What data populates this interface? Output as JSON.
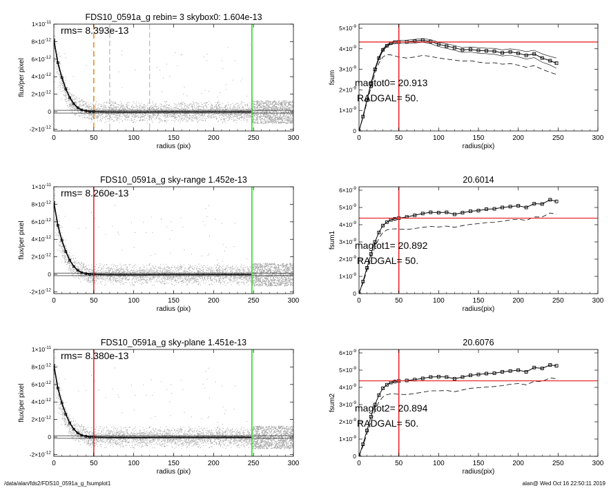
{
  "footer": {
    "left": "/data/alan/fds2/FDS10_0591a_g_fsumplot1",
    "right": "alan@  Wed Oct 16 22:50:11 2019"
  },
  "colors": {
    "red": "#e8282a",
    "green": "#22e01a",
    "orange": "#f08a1e",
    "scatter": "#a8a8a8",
    "profile": "#000000"
  },
  "chart_data": [
    {
      "type": "scatter",
      "panel": "left-1",
      "title": "FDS10_0591a_g rebin= 3    skybox0:  1.604e-13",
      "annotation": "rms= 8.393e-13",
      "xlabel": "radius (pix)",
      "ylabel": "flux/per pixel",
      "xlim": [
        0,
        300
      ],
      "ylim": [
        -2.2e-12,
        1e-11
      ],
      "xticks": [
        0,
        50,
        100,
        150,
        200,
        250,
        300
      ],
      "yticks": [
        {
          "v": 1e-11,
          "m": "1×10",
          "e": "-11"
        },
        {
          "v": 8e-12,
          "m": "8×10",
          "e": "-12"
        },
        {
          "v": 6e-12,
          "m": "6×10",
          "e": "-12"
        },
        {
          "v": 4e-12,
          "m": "4×10",
          "e": "-12"
        },
        {
          "v": 2e-12,
          "m": "2×10",
          "e": "-12"
        },
        {
          "v": 0,
          "m": "0",
          "e": ""
        },
        {
          "v": -2e-12,
          "m": "-2×10",
          "e": "-12"
        }
      ],
      "vlines": [
        {
          "x": 50,
          "color": "#f08a1e",
          "dash": true
        },
        {
          "x": 70,
          "color": "#888888",
          "dash": true,
          "thin": true
        },
        {
          "x": 120,
          "color": "#888888",
          "dash": true,
          "thin": true
        },
        {
          "x": 248,
          "color": "#22e01a"
        }
      ],
      "hlines": [
        {
          "y": 1.6e-13
        },
        {
          "y": -1.6e-13
        }
      ],
      "profile_x": [
        0,
        5,
        10,
        15,
        20,
        25,
        30,
        35,
        40,
        45,
        50,
        60,
        80,
        100,
        150,
        200,
        248
      ],
      "profile_y": [
        8.2e-12,
        5.6e-12,
        3.9e-12,
        2.6e-12,
        1.6e-12,
        9e-13,
        4.5e-13,
        2e-13,
        8e-14,
        2e-14,
        0.0,
        -2e-14,
        -3e-14,
        -3e-14,
        -2e-14,
        -2e-14,
        -2e-14
      ]
    },
    {
      "type": "line",
      "panel": "right-1",
      "title": "",
      "annotations": [
        "magtot0=  20.913",
        "RADGAL=     50."
      ],
      "xlabel": "radius(pix)",
      "ylabel": "fsum",
      "xlim": [
        0,
        300
      ],
      "ylim": [
        0,
        5.2e-09
      ],
      "xticks": [
        0,
        50,
        100,
        150,
        200,
        250,
        300
      ],
      "yticks": [
        {
          "v": 0,
          "m": "0",
          "e": ""
        },
        {
          "v": 1e-09,
          "m": "1×10",
          "e": "-9"
        },
        {
          "v": 2e-09,
          "m": "2×10",
          "e": "-9"
        },
        {
          "v": 3e-09,
          "m": "3×10",
          "e": "-9"
        },
        {
          "v": 4e-09,
          "m": "4×10",
          "e": "-9"
        },
        {
          "v": 5e-09,
          "m": "5×10",
          "e": "-9"
        }
      ],
      "vline": 50,
      "hline": 4.33e-09,
      "x": [
        0,
        5,
        10,
        15,
        20,
        25,
        30,
        35,
        40,
        45,
        50,
        60,
        70,
        80,
        90,
        100,
        110,
        120,
        130,
        140,
        150,
        160,
        170,
        180,
        190,
        200,
        210,
        220,
        230,
        240,
        248
      ],
      "series": [
        {
          "style": "squares",
          "values": [
            0,
            7e-10,
            1.5e-09,
            2.3e-09,
            3e-09,
            3.55e-09,
            3.95e-09,
            4.15e-09,
            4.27e-09,
            4.32e-09,
            4.33e-09,
            4.34e-09,
            4.38e-09,
            4.42e-09,
            4.35e-09,
            4.22e-09,
            4.13e-09,
            4.05e-09,
            3.95e-09,
            3.97e-09,
            3.92e-09,
            3.9e-09,
            3.88e-09,
            3.8e-09,
            3.85e-09,
            3.78e-09,
            3.68e-09,
            3.75e-09,
            3.55e-09,
            3.42e-09,
            3.3e-09
          ]
        },
        {
          "style": "thin",
          "values": [
            0,
            7.2e-10,
            1.52e-09,
            2.33e-09,
            3.05e-09,
            3.6e-09,
            4e-09,
            4.2e-09,
            4.32e-09,
            4.38e-09,
            4.4e-09,
            4.42e-09,
            4.46e-09,
            4.5e-09,
            4.44e-09,
            4.32e-09,
            4.24e-09,
            4.16e-09,
            4.06e-09,
            4.09e-09,
            4.05e-09,
            4.03e-09,
            4.02e-09,
            3.95e-09,
            4e-09,
            3.95e-09,
            3.86e-09,
            3.93e-09,
            3.75e-09,
            3.63e-09,
            3.55e-09
          ]
        },
        {
          "style": "thin",
          "values": [
            0,
            6.8e-10,
            1.48e-09,
            2.27e-09,
            2.95e-09,
            3.5e-09,
            3.9e-09,
            4.1e-09,
            4.22e-09,
            4.26e-09,
            4.26e-09,
            4.26e-09,
            4.28e-09,
            4.32e-09,
            4.25e-09,
            4.11e-09,
            4.02e-09,
            3.93e-09,
            3.82e-09,
            3.84e-09,
            3.78e-09,
            3.76e-09,
            3.73e-09,
            3.65e-09,
            3.69e-09,
            3.61e-09,
            3.5e-09,
            3.57e-09,
            3.35e-09,
            3.21e-09,
            3.05e-09
          ]
        },
        {
          "style": "dashed",
          "values": [
            0,
            6.5e-10,
            1.4e-09,
            2.1e-09,
            2.8e-09,
            3.3e-09,
            3.6e-09,
            3.72e-09,
            3.7e-09,
            3.65e-09,
            3.6e-09,
            3.55e-09,
            3.6e-09,
            3.68e-09,
            3.63e-09,
            3.55e-09,
            3.5e-09,
            3.45e-09,
            3.4e-09,
            3.42e-09,
            3.35e-09,
            3.3e-09,
            3.32e-09,
            3.25e-09,
            3.28e-09,
            3.2e-09,
            3.1e-09,
            3.18e-09,
            3e-09,
            2.85e-09,
            2.75e-09
          ]
        }
      ]
    },
    {
      "type": "scatter",
      "panel": "left-2",
      "title": "FDS10_0591a_g sky-range  1.452e-13",
      "annotation": "rms= 8.260e-13",
      "xlabel": "radius (pix)",
      "ylabel": "flux/per pixel",
      "xlim": [
        0,
        300
      ],
      "ylim": [
        -2.2e-12,
        1e-11
      ],
      "xticks": [
        0,
        50,
        100,
        150,
        200,
        250,
        300
      ],
      "yticks": [
        {
          "v": 1e-11,
          "m": "1×10",
          "e": "-11"
        },
        {
          "v": 8e-12,
          "m": "8×10",
          "e": "-12"
        },
        {
          "v": 6e-12,
          "m": "6×10",
          "e": "-12"
        },
        {
          "v": 4e-12,
          "m": "4×10",
          "e": "-12"
        },
        {
          "v": 2e-12,
          "m": "2×10",
          "e": "-12"
        },
        {
          "v": 0,
          "m": "0",
          "e": ""
        },
        {
          "v": -2e-12,
          "m": "-2×10",
          "e": "-12"
        }
      ],
      "vlines": [
        {
          "x": 50,
          "color": "#e8282a"
        },
        {
          "x": 248,
          "color": "#22e01a"
        }
      ],
      "hlines": [
        {
          "y": 1.45e-13
        },
        {
          "y": -1.45e-13
        }
      ],
      "profile_x": [
        0,
        5,
        10,
        15,
        20,
        25,
        30,
        35,
        40,
        45,
        50,
        60,
        80,
        100,
        150,
        200,
        248
      ],
      "profile_y": [
        8.2e-12,
        5.6e-12,
        3.9e-12,
        2.6e-12,
        1.6e-12,
        9e-13,
        4.5e-13,
        2e-13,
        8e-14,
        2e-14,
        0.0,
        -2e-14,
        -3e-14,
        -3e-14,
        -2e-14,
        -2e-14,
        -2e-14
      ]
    },
    {
      "type": "line",
      "panel": "right-2",
      "title": "20.6014",
      "annotations": [
        "magtot1=  20.892",
        "RADGAL=     50."
      ],
      "xlabel": "radius(pix)",
      "ylabel": "fsum1",
      "xlim": [
        0,
        300
      ],
      "ylim": [
        0,
        6.2e-09
      ],
      "xticks": [
        0,
        50,
        100,
        150,
        200,
        250,
        300
      ],
      "yticks": [
        {
          "v": 0,
          "m": "0",
          "e": ""
        },
        {
          "v": 1e-09,
          "m": "1×10",
          "e": "-9"
        },
        {
          "v": 2e-09,
          "m": "2×10",
          "e": "-9"
        },
        {
          "v": 3e-09,
          "m": "3×10",
          "e": "-9"
        },
        {
          "v": 4e-09,
          "m": "4×10",
          "e": "-9"
        },
        {
          "v": 5e-09,
          "m": "5×10",
          "e": "-9"
        },
        {
          "v": 6e-09,
          "m": "6×10",
          "e": "-9"
        }
      ],
      "vline": 50,
      "hline": 4.38e-09,
      "x": [
        0,
        5,
        10,
        15,
        20,
        25,
        30,
        35,
        40,
        45,
        50,
        60,
        70,
        80,
        90,
        100,
        110,
        120,
        130,
        140,
        150,
        160,
        170,
        180,
        190,
        200,
        210,
        220,
        230,
        240,
        248
      ],
      "series": [
        {
          "style": "squares",
          "values": [
            0,
            7e-10,
            1.5e-09,
            2.3e-09,
            3e-09,
            3.55e-09,
            3.95e-09,
            4.15e-09,
            4.28e-09,
            4.34e-09,
            4.38e-09,
            4.45e-09,
            4.55e-09,
            4.65e-09,
            4.72e-09,
            4.7e-09,
            4.72e-09,
            4.6e-09,
            4.7e-09,
            4.78e-09,
            4.82e-09,
            4.9e-09,
            4.92e-09,
            5e-09,
            5.05e-09,
            5.1e-09,
            5e-09,
            5.22e-09,
            5.2e-09,
            5.45e-09,
            5.35e-09
          ]
        },
        {
          "style": "dashed",
          "values": [
            0,
            6.2e-10,
            1.35e-09,
            2.05e-09,
            2.7e-09,
            3.2e-09,
            3.55e-09,
            3.7e-09,
            3.75e-09,
            3.76e-09,
            3.75e-09,
            3.72e-09,
            3.78e-09,
            3.85e-09,
            3.9e-09,
            3.87e-09,
            3.92e-09,
            3.85e-09,
            3.95e-09,
            4.02e-09,
            4.06e-09,
            4.12e-09,
            4.14e-09,
            4.2e-09,
            4.28e-09,
            4.32e-09,
            4.25e-09,
            4.45e-09,
            4.45e-09,
            4.68e-09,
            4.6e-09
          ]
        }
      ]
    },
    {
      "type": "scatter",
      "panel": "left-3",
      "title": "FDS10_0591a_g sky-plane  1.451e-13",
      "annotation": "rms= 8.380e-13",
      "xlabel": "radius (pix)",
      "ylabel": "flux/per pixel",
      "xlim": [
        0,
        300
      ],
      "ylim": [
        -2.2e-12,
        1e-11
      ],
      "xticks": [
        0,
        50,
        100,
        150,
        200,
        250,
        300
      ],
      "yticks": [
        {
          "v": 1e-11,
          "m": "1×10",
          "e": "-11"
        },
        {
          "v": 8e-12,
          "m": "8×10",
          "e": "-12"
        },
        {
          "v": 6e-12,
          "m": "6×10",
          "e": "-12"
        },
        {
          "v": 4e-12,
          "m": "4×10",
          "e": "-12"
        },
        {
          "v": 2e-12,
          "m": "2×10",
          "e": "-12"
        },
        {
          "v": 0,
          "m": "0",
          "e": ""
        },
        {
          "v": -2e-12,
          "m": "-2×10",
          "e": "-12"
        }
      ],
      "vlines": [
        {
          "x": 50,
          "color": "#e8282a"
        },
        {
          "x": 248,
          "color": "#22e01a"
        }
      ],
      "hlines": [
        {
          "y": 1.45e-13
        },
        {
          "y": -1.45e-13
        }
      ],
      "profile_x": [
        0,
        5,
        10,
        15,
        20,
        25,
        30,
        35,
        40,
        45,
        50,
        60,
        80,
        100,
        150,
        200,
        248
      ],
      "profile_y": [
        8.2e-12,
        5.6e-12,
        3.9e-12,
        2.6e-12,
        1.6e-12,
        9e-13,
        4.5e-13,
        2e-13,
        8e-14,
        2e-14,
        0.0,
        -2e-14,
        -3e-14,
        -3e-14,
        -2e-14,
        -2e-14,
        -2e-14
      ]
    },
    {
      "type": "line",
      "panel": "right-3",
      "title": "20.6076",
      "annotations": [
        "magtot2=  20.894",
        "RADGAL=     50."
      ],
      "xlabel": "radius(pix)",
      "ylabel": "fsum2",
      "xlim": [
        0,
        300
      ],
      "ylim": [
        0,
        6.2e-09
      ],
      "xticks": [
        0,
        50,
        100,
        150,
        200,
        250,
        300
      ],
      "yticks": [
        {
          "v": 0,
          "m": "0",
          "e": ""
        },
        {
          "v": 1e-09,
          "m": "1×10",
          "e": "-9"
        },
        {
          "v": 2e-09,
          "m": "2×10",
          "e": "-9"
        },
        {
          "v": 3e-09,
          "m": "3×10",
          "e": "-9"
        },
        {
          "v": 4e-09,
          "m": "4×10",
          "e": "-9"
        },
        {
          "v": 5e-09,
          "m": "5×10",
          "e": "-9"
        },
        {
          "v": 6e-09,
          "m": "6×10",
          "e": "-9"
        }
      ],
      "vline": 50,
      "hline": 4.38e-09,
      "x": [
        0,
        5,
        10,
        15,
        20,
        25,
        30,
        35,
        40,
        45,
        50,
        60,
        70,
        80,
        90,
        100,
        110,
        120,
        130,
        140,
        150,
        160,
        170,
        180,
        190,
        200,
        210,
        220,
        230,
        240,
        248
      ],
      "series": [
        {
          "style": "squares",
          "values": [
            0,
            7e-10,
            1.5e-09,
            2.3e-09,
            3e-09,
            3.55e-09,
            3.95e-09,
            4.15e-09,
            4.28e-09,
            4.34e-09,
            4.37e-09,
            4.4e-09,
            4.45e-09,
            4.52e-09,
            4.6e-09,
            4.62e-09,
            4.6e-09,
            4.5e-09,
            4.6e-09,
            4.7e-09,
            4.75e-09,
            4.8e-09,
            4.82e-09,
            4.9e-09,
            4.95e-09,
            5e-09,
            4.9e-09,
            5.15e-09,
            5.1e-09,
            5.3e-09,
            5.25e-09
          ]
        },
        {
          "style": "dashed",
          "values": [
            0,
            6e-10,
            1.3e-09,
            2e-09,
            2.65e-09,
            3.15e-09,
            3.45e-09,
            3.58e-09,
            3.62e-09,
            3.62e-09,
            3.6e-09,
            3.58e-09,
            3.65e-09,
            3.72e-09,
            3.8e-09,
            3.8e-09,
            3.82e-09,
            3.75e-09,
            3.85e-09,
            3.95e-09,
            3.98e-09,
            4.02e-09,
            4.05e-09,
            4.1e-09,
            4.18e-09,
            4.22e-09,
            4.15e-09,
            4.35e-09,
            4.35e-09,
            4.55e-09,
            4.5e-09
          ]
        }
      ]
    }
  ]
}
